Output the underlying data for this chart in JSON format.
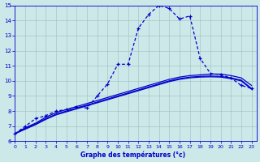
{
  "xlabel": "Graphe des températures (°c)",
  "xlim": [
    -0.5,
    23.5
  ],
  "ylim": [
    6,
    15
  ],
  "yticks": [
    6,
    7,
    8,
    9,
    10,
    11,
    12,
    13,
    14,
    15
  ],
  "xticks": [
    0,
    1,
    2,
    3,
    4,
    5,
    6,
    7,
    8,
    9,
    10,
    11,
    12,
    13,
    14,
    15,
    16,
    17,
    18,
    19,
    20,
    21,
    22,
    23
  ],
  "bg_color": "#cce8e8",
  "line_color": "#0000cc",
  "actual_temps": [
    6.5,
    7.0,
    7.5,
    7.7,
    8.0,
    8.1,
    8.3,
    8.2,
    9.0,
    9.8,
    11.1,
    11.1,
    13.5,
    14.4,
    15.0,
    14.8,
    14.1,
    14.3,
    11.5,
    10.5,
    10.4,
    10.2,
    9.7,
    9.5
  ],
  "curve_top": [
    6.5,
    6.9,
    7.2,
    7.6,
    7.9,
    8.1,
    8.3,
    8.5,
    8.7,
    8.9,
    9.1,
    9.3,
    9.5,
    9.7,
    9.9,
    10.1,
    10.25,
    10.35,
    10.4,
    10.45,
    10.45,
    10.35,
    10.2,
    9.7
  ],
  "curve_mid": [
    6.5,
    6.85,
    7.15,
    7.5,
    7.8,
    8.0,
    8.2,
    8.4,
    8.6,
    8.8,
    9.0,
    9.2,
    9.4,
    9.6,
    9.8,
    10.0,
    10.15,
    10.25,
    10.3,
    10.32,
    10.3,
    10.2,
    10.05,
    9.5
  ],
  "curve_bot": [
    6.5,
    6.8,
    7.1,
    7.45,
    7.75,
    7.95,
    8.15,
    8.35,
    8.55,
    8.75,
    8.95,
    9.15,
    9.35,
    9.55,
    9.75,
    9.95,
    10.1,
    10.2,
    10.25,
    10.27,
    10.25,
    10.15,
    10.0,
    9.45
  ]
}
